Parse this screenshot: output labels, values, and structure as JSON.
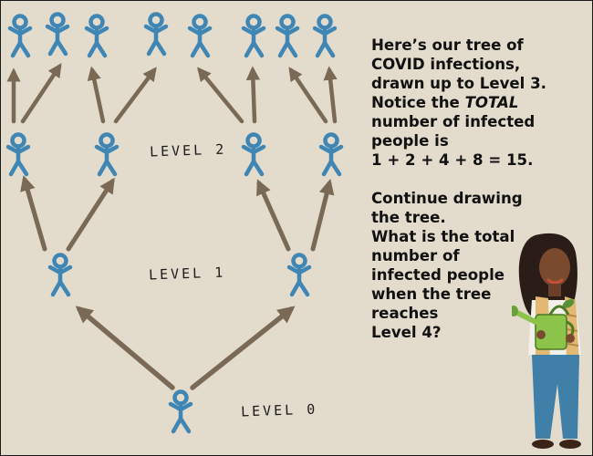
{
  "levels": {
    "level0": "LEVEL 0",
    "level1": "LEVEL 1",
    "level2": "LEVEL 2"
  },
  "text": {
    "para1_line1": "Here’s our tree of",
    "para1_line2": "COVID infections,",
    "para1_line3": "drawn up to Level 3.",
    "para1_line4_pre": "Notice the ",
    "para1_line4_italic": "TOTAL",
    "para1_line5": "number of infected",
    "para1_line6": "people is",
    "para1_line7": "1 + 2 + 4 + 8 = 15.",
    "para2_line1": "Continue drawing",
    "para2_line2": "the tree.",
    "para2_line3": "What is the total",
    "para2_line4": "number of",
    "para2_line5": "infected people",
    "para2_line6": "when the tree",
    "para2_line7": "reaches",
    "para2_line8": "Level 4?"
  },
  "colors": {
    "background": "#e3dccd",
    "person": "#3f86b5",
    "arrow": "#7a6a55"
  }
}
